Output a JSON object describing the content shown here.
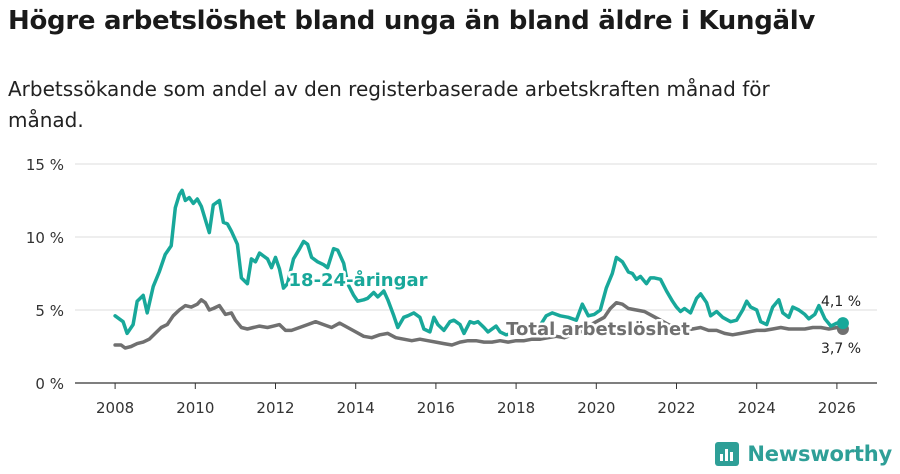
{
  "title": "Högre arbetslöshet bland unga än bland äldre i Kungälv",
  "subtitle": "Arbetssökande som andel av den registerbaserade arbetskraften månad för månad.",
  "brand": {
    "name": "Newsworthy",
    "icon": "newsworthy-logo-icon"
  },
  "chart_data": {
    "type": "line",
    "ylim": [
      0,
      15
    ],
    "xlim": [
      2007,
      2027
    ],
    "y_ticks": [
      0,
      5,
      10,
      15
    ],
    "y_tick_labels": [
      "0 %",
      "5 %",
      "10 %",
      "15 %"
    ],
    "x_ticks": [
      2008,
      2010,
      2012,
      2014,
      2016,
      2018,
      2020,
      2022,
      2024,
      2026
    ],
    "x_tick_labels": [
      "2008",
      "2010",
      "2012",
      "2014",
      "2016",
      "2018",
      "2020",
      "2022",
      "2024",
      "2026"
    ],
    "grid": true,
    "series": [
      {
        "name": "18-24-åringar",
        "label": "18-24-åringar",
        "end_label": "4,1 %",
        "color": "#18a89a",
        "points": [
          [
            2008.0,
            4.6
          ],
          [
            2008.2,
            4.2
          ],
          [
            2008.3,
            3.4
          ],
          [
            2008.45,
            4.0
          ],
          [
            2008.55,
            5.6
          ],
          [
            2008.7,
            6.0
          ],
          [
            2008.8,
            4.8
          ],
          [
            2008.95,
            6.6
          ],
          [
            2009.1,
            7.6
          ],
          [
            2009.25,
            8.8
          ],
          [
            2009.4,
            9.4
          ],
          [
            2009.5,
            12.0
          ],
          [
            2009.6,
            12.9
          ],
          [
            2009.67,
            13.2
          ],
          [
            2009.75,
            12.5
          ],
          [
            2009.85,
            12.7
          ],
          [
            2009.95,
            12.3
          ],
          [
            2010.05,
            12.6
          ],
          [
            2010.15,
            12.1
          ],
          [
            2010.25,
            11.2
          ],
          [
            2010.35,
            10.3
          ],
          [
            2010.45,
            12.2
          ],
          [
            2010.6,
            12.5
          ],
          [
            2010.7,
            11.0
          ],
          [
            2010.8,
            10.9
          ],
          [
            2010.9,
            10.4
          ],
          [
            2011.05,
            9.5
          ],
          [
            2011.15,
            7.2
          ],
          [
            2011.3,
            6.8
          ],
          [
            2011.4,
            8.5
          ],
          [
            2011.5,
            8.3
          ],
          [
            2011.6,
            8.9
          ],
          [
            2011.7,
            8.7
          ],
          [
            2011.8,
            8.5
          ],
          [
            2011.9,
            7.9
          ],
          [
            2012.0,
            8.6
          ],
          [
            2012.1,
            7.8
          ],
          [
            2012.2,
            6.5
          ],
          [
            2012.3,
            6.8
          ],
          [
            2012.45,
            8.5
          ],
          [
            2012.6,
            9.2
          ],
          [
            2012.7,
            9.7
          ],
          [
            2012.8,
            9.5
          ],
          [
            2012.9,
            8.6
          ],
          [
            2013.05,
            8.3
          ],
          [
            2013.2,
            8.1
          ],
          [
            2013.3,
            7.9
          ],
          [
            2013.45,
            9.2
          ],
          [
            2013.55,
            9.1
          ],
          [
            2013.7,
            8.2
          ],
          [
            2013.8,
            6.8
          ],
          [
            2013.95,
            6.0
          ],
          [
            2014.05,
            5.6
          ],
          [
            2014.2,
            5.7
          ],
          [
            2014.3,
            5.8
          ],
          [
            2014.45,
            6.2
          ],
          [
            2014.55,
            5.9
          ],
          [
            2014.7,
            6.3
          ],
          [
            2014.8,
            5.7
          ],
          [
            2014.95,
            4.6
          ],
          [
            2015.05,
            3.8
          ],
          [
            2015.2,
            4.5
          ],
          [
            2015.3,
            4.6
          ],
          [
            2015.45,
            4.8
          ],
          [
            2015.6,
            4.5
          ],
          [
            2015.7,
            3.7
          ],
          [
            2015.85,
            3.5
          ],
          [
            2015.95,
            4.5
          ],
          [
            2016.05,
            4.0
          ],
          [
            2016.2,
            3.6
          ],
          [
            2016.35,
            4.2
          ],
          [
            2016.45,
            4.3
          ],
          [
            2016.6,
            4.0
          ],
          [
            2016.7,
            3.4
          ],
          [
            2016.85,
            4.2
          ],
          [
            2016.95,
            4.1
          ],
          [
            2017.05,
            4.2
          ],
          [
            2017.2,
            3.8
          ],
          [
            2017.3,
            3.5
          ],
          [
            2017.5,
            3.9
          ],
          [
            2017.6,
            3.5
          ],
          [
            2017.75,
            3.3
          ],
          [
            2017.9,
            3.4
          ],
          [
            2018.0,
            3.6
          ],
          [
            2018.5,
            3.5
          ],
          [
            2018.75,
            4.6
          ],
          [
            2018.9,
            4.8
          ],
          [
            2019.1,
            4.6
          ],
          [
            2019.3,
            4.5
          ],
          [
            2019.5,
            4.3
          ],
          [
            2019.65,
            5.4
          ],
          [
            2019.8,
            4.6
          ],
          [
            2019.95,
            4.7
          ],
          [
            2020.1,
            5.0
          ],
          [
            2020.25,
            6.5
          ],
          [
            2020.4,
            7.5
          ],
          [
            2020.5,
            8.6
          ],
          [
            2020.65,
            8.3
          ],
          [
            2020.8,
            7.6
          ],
          [
            2020.9,
            7.5
          ],
          [
            2021.0,
            7.1
          ],
          [
            2021.1,
            7.3
          ],
          [
            2021.25,
            6.8
          ],
          [
            2021.35,
            7.2
          ],
          [
            2021.45,
            7.2
          ],
          [
            2021.6,
            7.1
          ],
          [
            2021.75,
            6.3
          ],
          [
            2021.9,
            5.6
          ],
          [
            2022.0,
            5.2
          ],
          [
            2022.1,
            4.9
          ],
          [
            2022.2,
            5.1
          ],
          [
            2022.35,
            4.8
          ],
          [
            2022.5,
            5.8
          ],
          [
            2022.6,
            6.1
          ],
          [
            2022.75,
            5.5
          ],
          [
            2022.85,
            4.6
          ],
          [
            2023.0,
            4.9
          ],
          [
            2023.15,
            4.5
          ],
          [
            2023.35,
            4.2
          ],
          [
            2023.5,
            4.3
          ],
          [
            2023.65,
            5.0
          ],
          [
            2023.75,
            5.6
          ],
          [
            2023.85,
            5.2
          ],
          [
            2024.0,
            5.0
          ],
          [
            2024.1,
            4.2
          ],
          [
            2024.25,
            4.0
          ],
          [
            2024.4,
            5.2
          ],
          [
            2024.55,
            5.7
          ],
          [
            2024.65,
            4.8
          ],
          [
            2024.8,
            4.5
          ],
          [
            2024.9,
            5.2
          ],
          [
            2025.05,
            5.0
          ],
          [
            2025.2,
            4.7
          ],
          [
            2025.3,
            4.4
          ],
          [
            2025.45,
            4.7
          ],
          [
            2025.55,
            5.3
          ],
          [
            2025.7,
            4.4
          ],
          [
            2025.85,
            3.9
          ],
          [
            2026.0,
            4.1
          ],
          [
            2026.15,
            4.1
          ]
        ]
      },
      {
        "name": "Total arbetslöshet",
        "label": "Total arbetslöshet",
        "end_label": "3,7 %",
        "color": "#707070",
        "points": [
          [
            2008.0,
            2.6
          ],
          [
            2008.15,
            2.6
          ],
          [
            2008.25,
            2.4
          ],
          [
            2008.4,
            2.5
          ],
          [
            2008.55,
            2.7
          ],
          [
            2008.7,
            2.8
          ],
          [
            2008.85,
            3.0
          ],
          [
            2009.0,
            3.4
          ],
          [
            2009.15,
            3.8
          ],
          [
            2009.3,
            4.0
          ],
          [
            2009.45,
            4.6
          ],
          [
            2009.6,
            5.0
          ],
          [
            2009.75,
            5.3
          ],
          [
            2009.9,
            5.2
          ],
          [
            2010.05,
            5.4
          ],
          [
            2010.15,
            5.7
          ],
          [
            2010.25,
            5.5
          ],
          [
            2010.35,
            5.0
          ],
          [
            2010.45,
            5.1
          ],
          [
            2010.6,
            5.3
          ],
          [
            2010.75,
            4.7
          ],
          [
            2010.9,
            4.8
          ],
          [
            2011.0,
            4.3
          ],
          [
            2011.15,
            3.8
          ],
          [
            2011.3,
            3.7
          ],
          [
            2011.45,
            3.8
          ],
          [
            2011.6,
            3.9
          ],
          [
            2011.8,
            3.8
          ],
          [
            2011.95,
            3.9
          ],
          [
            2012.1,
            4.0
          ],
          [
            2012.25,
            3.6
          ],
          [
            2012.4,
            3.6
          ],
          [
            2012.6,
            3.8
          ],
          [
            2012.8,
            4.0
          ],
          [
            2013.0,
            4.2
          ],
          [
            2013.2,
            4.0
          ],
          [
            2013.4,
            3.8
          ],
          [
            2013.6,
            4.1
          ],
          [
            2013.8,
            3.8
          ],
          [
            2014.0,
            3.5
          ],
          [
            2014.2,
            3.2
          ],
          [
            2014.4,
            3.1
          ],
          [
            2014.6,
            3.3
          ],
          [
            2014.8,
            3.4
          ],
          [
            2015.0,
            3.1
          ],
          [
            2015.2,
            3.0
          ],
          [
            2015.4,
            2.9
          ],
          [
            2015.6,
            3.0
          ],
          [
            2015.8,
            2.9
          ],
          [
            2016.0,
            2.8
          ],
          [
            2016.2,
            2.7
          ],
          [
            2016.4,
            2.6
          ],
          [
            2016.6,
            2.8
          ],
          [
            2016.8,
            2.9
          ],
          [
            2017.0,
            2.9
          ],
          [
            2017.2,
            2.8
          ],
          [
            2017.4,
            2.8
          ],
          [
            2017.6,
            2.9
          ],
          [
            2017.8,
            2.8
          ],
          [
            2018.0,
            2.9
          ],
          [
            2018.2,
            2.9
          ],
          [
            2018.4,
            3.0
          ],
          [
            2018.6,
            3.0
          ],
          [
            2018.8,
            3.1
          ],
          [
            2019.0,
            3.2
          ],
          [
            2019.2,
            3.1
          ],
          [
            2019.4,
            3.3
          ],
          [
            2019.6,
            3.5
          ],
          [
            2019.8,
            3.9
          ],
          [
            2020.0,
            4.2
          ],
          [
            2020.2,
            4.5
          ],
          [
            2020.35,
            5.1
          ],
          [
            2020.5,
            5.5
          ],
          [
            2020.65,
            5.4
          ],
          [
            2020.8,
            5.1
          ],
          [
            2021.0,
            5.0
          ],
          [
            2021.2,
            4.9
          ],
          [
            2021.4,
            4.6
          ],
          [
            2021.6,
            4.3
          ],
          [
            2021.8,
            4.0
          ],
          [
            2022.0,
            3.8
          ],
          [
            2022.2,
            3.6
          ],
          [
            2022.4,
            3.7
          ],
          [
            2022.6,
            3.8
          ],
          [
            2022.8,
            3.6
          ],
          [
            2023.0,
            3.6
          ],
          [
            2023.2,
            3.4
          ],
          [
            2023.4,
            3.3
          ],
          [
            2023.6,
            3.4
          ],
          [
            2023.8,
            3.5
          ],
          [
            2024.0,
            3.6
          ],
          [
            2024.2,
            3.6
          ],
          [
            2024.4,
            3.7
          ],
          [
            2024.6,
            3.8
          ],
          [
            2024.8,
            3.7
          ],
          [
            2025.0,
            3.7
          ],
          [
            2025.2,
            3.7
          ],
          [
            2025.4,
            3.8
          ],
          [
            2025.6,
            3.8
          ],
          [
            2025.8,
            3.7
          ],
          [
            2026.0,
            3.8
          ],
          [
            2026.15,
            3.7
          ]
        ]
      }
    ]
  }
}
